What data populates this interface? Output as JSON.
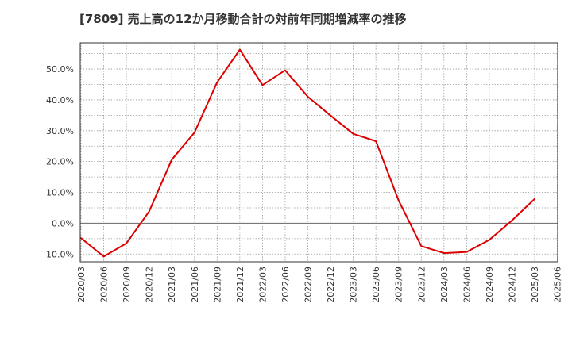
{
  "chart_data": {
    "type": "line",
    "title": "[7809]  売上高の12か月移動合計の対前年同期増減率の推移",
    "xlabel": "",
    "ylabel": "",
    "ylim": [
      -12.5,
      58.5
    ],
    "grid": true,
    "y_ticks": [
      {
        "value": 50,
        "label": "50.0%"
      },
      {
        "value": 40,
        "label": "40.0%"
      },
      {
        "value": 30,
        "label": "30.0%"
      },
      {
        "value": 20,
        "label": "20.0%"
      },
      {
        "value": 10,
        "label": "10.0%"
      },
      {
        "value": 0,
        "label": "0.0%"
      },
      {
        "value": -10,
        "label": "-10.0%"
      }
    ],
    "x_ticks": [
      "2020/03",
      "2020/06",
      "2020/09",
      "2020/12",
      "2021/03",
      "2021/06",
      "2021/09",
      "2021/12",
      "2022/03",
      "2022/06",
      "2022/09",
      "2022/12",
      "2023/03",
      "2023/06",
      "2023/09",
      "2023/12",
      "2024/03",
      "2024/06",
      "2024/09",
      "2024/12",
      "2025/03",
      "2025/06"
    ],
    "series": [
      {
        "name": "売上高の12か月移動合計の対前年同期増減率",
        "color": "#dd0000",
        "x": [
          "2020/03",
          "2020/06",
          "2020/09",
          "2020/12",
          "2021/03",
          "2021/06",
          "2021/09",
          "2021/12",
          "2022/03",
          "2022/06",
          "2022/09",
          "2022/12",
          "2023/03",
          "2023/06",
          "2023/09",
          "2023/12",
          "2024/03",
          "2024/06",
          "2024/09",
          "2024/12",
          "2025/03"
        ],
        "values": [
          -4.8,
          -10.8,
          -6.5,
          3.8,
          20.6,
          29.4,
          45.7,
          56.3,
          44.8,
          49.6,
          41.0,
          34.9,
          29.0,
          26.6,
          7.4,
          -7.4,
          -9.7,
          -9.3,
          -5.4,
          0.9,
          7.9
        ]
      }
    ]
  }
}
